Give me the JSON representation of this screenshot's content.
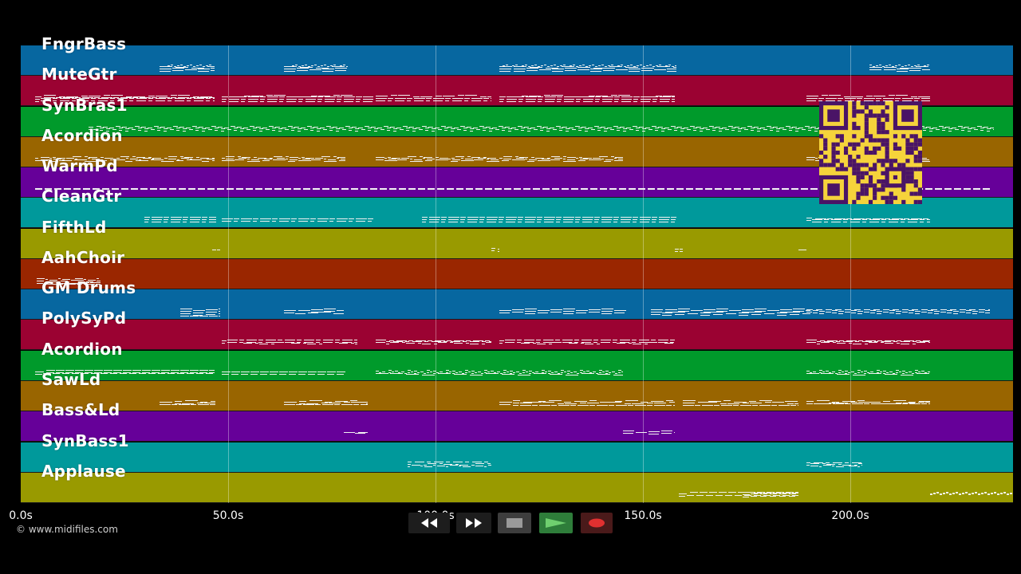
{
  "tracks": [
    {
      "name": "FngrBass",
      "color": "#0767a0"
    },
    {
      "name": "MuteGtr",
      "color": "#9b0232"
    },
    {
      "name": "SynBras1",
      "color": "#009a2b"
    },
    {
      "name": "Acordion",
      "color": "#996500"
    },
    {
      "name": "WarmPd",
      "color": "#660099"
    },
    {
      "name": "CleanGtr",
      "color": "#00999b"
    },
    {
      "name": "FifthLd",
      "color": "#999a00"
    },
    {
      "name": "AahChoir",
      "color": "#9a2600"
    },
    {
      "name": "GM Drums",
      "color": "#0767a0"
    },
    {
      "name": "PolySyPd",
      "color": "#9b0232"
    },
    {
      "name": "Acordion",
      "color": "#009a2b"
    },
    {
      "name": "SawLd",
      "color": "#996500"
    },
    {
      "name": "Bass&Ld",
      "color": "#660099"
    },
    {
      "name": "SynBass1",
      "color": "#00999b"
    },
    {
      "name": "Applause",
      "color": "#999a00"
    }
  ],
  "timeline": {
    "ticks": [
      "0.0s",
      "50.0s",
      "100.0s",
      "150.0s",
      "200.0s"
    ],
    "tick_seconds": [
      0,
      50,
      100,
      150,
      200
    ],
    "duration_seconds": 239
  },
  "copyright": "© www.midifiles.com",
  "transport": {
    "rewind_icon": "rewind-icon",
    "fast_forward_icon": "fast-forward-icon",
    "stop_icon": "stop-icon",
    "play_icon": "play-icon",
    "record_icon": "record-icon"
  },
  "qr_icon": "qr-code-icon",
  "colors": {
    "background": "#000000",
    "note": "#f2f2f2",
    "qr": "#f5d33b",
    "qr_dark": "#4a1466"
  }
}
